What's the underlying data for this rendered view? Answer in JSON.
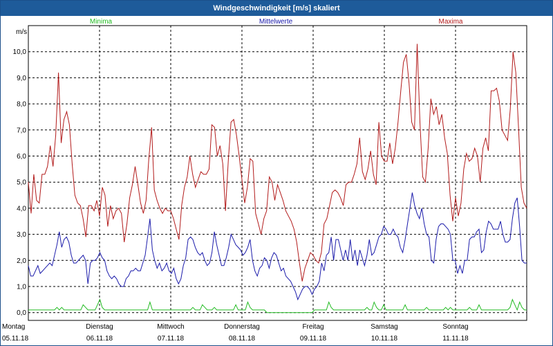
{
  "window": {
    "title": "Windgeschwindigkeit [m/s] skaliert"
  },
  "chart_data": {
    "type": "line",
    "title": "Windgeschwindigkeit [m/s] skaliert",
    "ylabel": "m/s",
    "ylim": [
      -0.3,
      11.0
    ],
    "yticks": [
      "0,0",
      "1,0",
      "2,0",
      "3,0",
      "4,0",
      "5,0",
      "6,0",
      "7,0",
      "8,0",
      "9,0",
      "10,0"
    ],
    "x_range": [
      0,
      7
    ],
    "days": [
      {
        "name": "Montag",
        "date": "05.11.18"
      },
      {
        "name": "Dienstag",
        "date": "06.11.18"
      },
      {
        "name": "Mittwoch",
        "date": "07.11.18"
      },
      {
        "name": "Donnerstag",
        "date": "08.11.18"
      },
      {
        "name": "Freitag",
        "date": "09.11.18"
      },
      {
        "name": "Samstag",
        "date": "10.11.18"
      },
      {
        "name": "Sonntag",
        "date": "11.11.18"
      }
    ],
    "series": [
      {
        "name": "Minima",
        "color": "#22bb22",
        "values": [
          0.1,
          0.1,
          0.1,
          0.1,
          0.1,
          0.1,
          0.1,
          0.1,
          0.1,
          0.1,
          0.1,
          0.1,
          0.2,
          0.1,
          0.2,
          0.1,
          0.1,
          0.1,
          0.1,
          0.1,
          0.1,
          0.1,
          0.1,
          0.3,
          0.2,
          0.1,
          0.1,
          0.1,
          0.1,
          0.3,
          0.5,
          0.2,
          0.1,
          0.1,
          0.1,
          0.1,
          0.1,
          0.1,
          0.1,
          0.1,
          0.1,
          0.1,
          0.1,
          0.1,
          0.1,
          0.1,
          0.1,
          0.1,
          0.1,
          0.1,
          0.1,
          0.4,
          0.1,
          0.1,
          0.1,
          0.1,
          0.1,
          0.1,
          0.1,
          0.1,
          0.1,
          0.1,
          0.1,
          0.1,
          0.1,
          0.1,
          0.1,
          0.1,
          0.1,
          0.2,
          0.1,
          0.1,
          0.1,
          0.3,
          0.2,
          0.1,
          0.1,
          0.1,
          0.2,
          0.1,
          0.1,
          0.1,
          0.1,
          0.1,
          0.1,
          0.1,
          0.1,
          0.3,
          0.1,
          0.1,
          0.1,
          0.1,
          0.4,
          0.2,
          0.1,
          0.1,
          0.1,
          0.1,
          0.1,
          0.1,
          0.0,
          0.0,
          0.0,
          0.0,
          0.0,
          0.0,
          0.0,
          0.0,
          0.0,
          0.0,
          0.0,
          0.0,
          0.0,
          0.0,
          0.0,
          0.0,
          0.0,
          0.0,
          0.0,
          0.0,
          0.1,
          0.1,
          0.1,
          0.1,
          0.1,
          0.1,
          0.4,
          0.2,
          0.1,
          0.1,
          0.1,
          0.1,
          0.1,
          0.1,
          0.1,
          0.1,
          0.1,
          0.1,
          0.1,
          0.1,
          0.1,
          0.1,
          0.2,
          0.1,
          0.1,
          0.4,
          0.2,
          0.1,
          0.1,
          0.3,
          0.1,
          0.1,
          0.1,
          0.1,
          0.1,
          0.1,
          0.1,
          0.1,
          0.3,
          0.1,
          0.1,
          0.1,
          0.1,
          0.1,
          0.1,
          0.1,
          0.1,
          0.2,
          0.1,
          0.1,
          0.1,
          0.1,
          0.1,
          0.1,
          0.1,
          0.2,
          0.1,
          0.2,
          0.1,
          0.1,
          0.1,
          0.1,
          0.1,
          0.1,
          0.1,
          0.2,
          0.1,
          0.1,
          0.1,
          0.3,
          0.1,
          0.1,
          0.1,
          0.1,
          0.1,
          0.1,
          0.1,
          0.1,
          0.1,
          0.1,
          0.1,
          0.1,
          0.2,
          0.5,
          0.3,
          0.1,
          0.4,
          0.2,
          0.1,
          0.1
        ]
      },
      {
        "name": "Mittelwerte",
        "color": "#1a1aaa",
        "values": [
          1.8,
          1.4,
          1.4,
          1.6,
          1.8,
          1.5,
          1.6,
          1.7,
          1.8,
          1.9,
          1.8,
          2.2,
          2.6,
          3.1,
          2.5,
          2.8,
          2.9,
          2.7,
          2.2,
          1.9,
          1.9,
          2.0,
          2.1,
          2.2,
          2.0,
          1.1,
          1.9,
          2.0,
          2.0,
          2.1,
          2.3,
          2.1,
          2.0,
          1.6,
          1.4,
          1.3,
          1.4,
          1.3,
          1.1,
          1.0,
          1.0,
          1.3,
          1.4,
          1.6,
          1.6,
          1.7,
          1.6,
          1.6,
          1.9,
          2.2,
          2.9,
          3.6,
          2.4,
          2.0,
          1.7,
          1.9,
          1.6,
          1.7,
          1.9,
          1.6,
          1.5,
          1.7,
          1.3,
          1.1,
          1.3,
          1.8,
          2.1,
          2.8,
          2.9,
          2.8,
          2.5,
          2.3,
          2.2,
          2.3,
          2.0,
          1.8,
          1.9,
          2.3,
          3.1,
          2.6,
          2.2,
          1.8,
          1.8,
          2.1,
          2.5,
          3.0,
          2.8,
          2.6,
          2.5,
          2.4,
          2.2,
          2.3,
          2.5,
          2.8,
          2.0,
          1.6,
          1.4,
          1.7,
          1.8,
          2.1,
          2.0,
          1.7,
          2.1,
          2.3,
          2.2,
          1.9,
          1.6,
          1.7,
          1.4,
          1.3,
          1.2,
          1.0,
          0.8,
          0.5,
          0.7,
          0.9,
          1.0,
          1.0,
          0.9,
          0.7,
          0.9,
          1.0,
          1.2,
          1.9,
          1.6,
          2.2,
          2.3,
          2.9,
          2.0,
          2.8,
          2.8,
          2.4,
          2.0,
          2.4,
          2.0,
          2.8,
          2.0,
          2.4,
          1.8,
          2.4,
          2.1,
          1.8,
          2.2,
          2.8,
          2.2,
          2.3,
          2.6,
          2.9,
          3.0,
          3.3,
          3.2,
          3.0,
          3.0,
          3.2,
          3.0,
          2.9,
          2.5,
          2.3,
          2.8,
          3.4,
          4.0,
          4.6,
          4.1,
          3.8,
          3.6,
          4.0,
          3.4,
          3.0,
          2.9,
          2.0,
          1.9,
          2.8,
          3.3,
          3.4,
          3.4,
          3.3,
          3.2,
          3.0,
          2.0,
          2.0,
          1.5,
          1.8,
          1.5,
          2.0,
          2.0,
          2.8,
          2.9,
          2.9,
          3.1,
          3.2,
          2.3,
          2.4,
          3.1,
          3.5,
          3.4,
          3.2,
          3.2,
          3.2,
          3.5,
          3.0,
          2.7,
          2.7,
          2.8,
          3.6,
          4.2,
          4.4,
          3.3,
          2.0,
          1.9,
          1.9
        ]
      },
      {
        "name": "Maxima",
        "color": "#b21a1a",
        "values": [
          5.0,
          3.8,
          5.3,
          4.3,
          4.2,
          5.3,
          5.3,
          5.6,
          6.4,
          5.6,
          6.8,
          9.2,
          6.5,
          7.4,
          7.7,
          7.2,
          5.7,
          4.5,
          4.2,
          4.1,
          3.6,
          2.9,
          4.1,
          4.1,
          3.9,
          4.3,
          3.7,
          4.8,
          4.5,
          3.3,
          4.1,
          3.6,
          3.9,
          4.0,
          3.8,
          2.7,
          3.4,
          4.4,
          4.9,
          5.6,
          4.9,
          4.2,
          3.8,
          4.3,
          5.9,
          7.1,
          4.7,
          4.3,
          4.0,
          3.8,
          4.0,
          3.9,
          3.9,
          3.6,
          3.2,
          2.8,
          4.1,
          4.8,
          5.2,
          6.0,
          5.3,
          4.8,
          5.1,
          5.4,
          5.3,
          5.3,
          5.5,
          7.2,
          7.1,
          6.0,
          6.4,
          5.7,
          3.9,
          5.8,
          7.3,
          7.4,
          6.8,
          6.0,
          5.1,
          4.2,
          4.8,
          5.9,
          5.8,
          3.8,
          3.4,
          3.0,
          3.6,
          3.9,
          5.2,
          5.0,
          4.3,
          4.9,
          4.6,
          4.3,
          3.9,
          3.7,
          3.5,
          3.2,
          2.7,
          1.9,
          1.2,
          1.7,
          2.0,
          2.3,
          2.2,
          2.0,
          1.9,
          2.3,
          3.4,
          3.6,
          4.1,
          4.6,
          4.7,
          4.6,
          4.4,
          4.1,
          4.9,
          5.0,
          5.0,
          5.3,
          5.7,
          6.7,
          5.4,
          5.1,
          5.5,
          6.2,
          5.3,
          4.9,
          7.3,
          6.0,
          5.8,
          5.8,
          6.5,
          5.7,
          6.3,
          7.3,
          8.5,
          9.6,
          9.9,
          8.8,
          7.3,
          7.0,
          10.3,
          7.3,
          5.2,
          5.0,
          6.3,
          8.2,
          7.6,
          7.9,
          7.2,
          7.6,
          6.7,
          6.1,
          4.5,
          3.5,
          4.4,
          3.7,
          4.2,
          5.5,
          6.1,
          5.8,
          5.9,
          6.3,
          6.0,
          5.0,
          6.3,
          6.7,
          6.2,
          8.5,
          8.5,
          8.6,
          8.1,
          7.0,
          6.8,
          6.6,
          7.8,
          10.0,
          9.2,
          7.1,
          4.8,
          4.2,
          4.0
        ]
      }
    ]
  }
}
